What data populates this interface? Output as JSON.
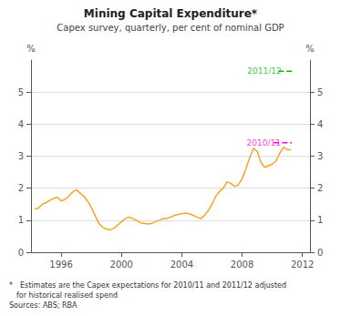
{
  "chart_data": {
    "type": "line",
    "title": "Mining Capital Expenditure*",
    "subtitle": "Capex survey, quarterly, per cent of nominal GDP",
    "footnote": "* Estimates are the Capex expectations for 2010/11 and 2011/12 adjusted\n for historical realised spend\nSources: ABS; RBA",
    "ylabel": "%",
    "y2label": "%",
    "xlim": [
      1994.0,
      2012.5
    ],
    "xticks": [
      1996,
      2000,
      2004,
      2008,
      2012
    ],
    "ylim": [
      0,
      6
    ],
    "yticks": [
      0,
      1,
      2,
      3,
      4,
      5
    ],
    "y2lim": [
      0,
      6
    ],
    "y2ticks": [
      0,
      1,
      2,
      3,
      4,
      5
    ],
    "grid": true,
    "color": "#F5A623",
    "x": [
      1994.25,
      1994.5,
      1994.75,
      1995.0,
      1995.25,
      1995.5,
      1995.75,
      1996.0,
      1996.25,
      1996.5,
      1996.75,
      1997.0,
      1997.25,
      1997.5,
      1997.75,
      1998.0,
      1998.25,
      1998.5,
      1998.75,
      1999.0,
      1999.25,
      1999.5,
      1999.75,
      2000.0,
      2000.25,
      2000.5,
      2000.75,
      2001.0,
      2001.25,
      2001.5,
      2001.75,
      2002.0,
      2002.25,
      2002.5,
      2002.75,
      2003.0,
      2003.25,
      2003.5,
      2003.75,
      2004.0,
      2004.25,
      2004.5,
      2004.75,
      2005.0,
      2005.25,
      2005.5,
      2005.75,
      2006.0,
      2006.25,
      2006.5,
      2006.75,
      2007.0,
      2007.25,
      2007.5,
      2007.75,
      2008.0,
      2008.25,
      2008.5,
      2008.75,
      2009.0,
      2009.25,
      2009.5,
      2009.75,
      2010.0,
      2010.25,
      2010.5,
      2010.75,
      2011.0,
      2011.25
    ],
    "values": [
      1.35,
      1.38,
      1.5,
      1.55,
      1.62,
      1.68,
      1.72,
      1.6,
      1.65,
      1.75,
      1.88,
      1.95,
      1.85,
      1.75,
      1.6,
      1.4,
      1.15,
      0.9,
      0.78,
      0.72,
      0.7,
      0.75,
      0.85,
      0.95,
      1.05,
      1.1,
      1.05,
      1.0,
      0.92,
      0.9,
      0.88,
      0.9,
      0.95,
      1.0,
      1.05,
      1.05,
      1.1,
      1.15,
      1.18,
      1.2,
      1.22,
      1.2,
      1.15,
      1.1,
      1.05,
      1.15,
      1.3,
      1.5,
      1.75,
      1.9,
      2.0,
      2.2,
      2.15,
      2.05,
      2.1,
      2.3,
      2.6,
      2.95,
      3.25,
      3.15,
      2.8,
      2.65,
      2.7,
      2.75,
      2.85,
      3.1,
      3.28,
      3.2,
      3.2
    ],
    "annotations": [
      {
        "text": "2010/11",
        "x": 2008.3,
        "y": 3.42,
        "x1": 2010.1,
        "x2": 2011.3,
        "color": "#FF00CC",
        "line_style": "dashed"
      },
      {
        "text": "2011/12",
        "x": 2008.35,
        "y": 5.65,
        "x1": 2010.4,
        "x2": 2011.3,
        "color": "#00BB00",
        "line_style": "dashed"
      }
    ]
  }
}
